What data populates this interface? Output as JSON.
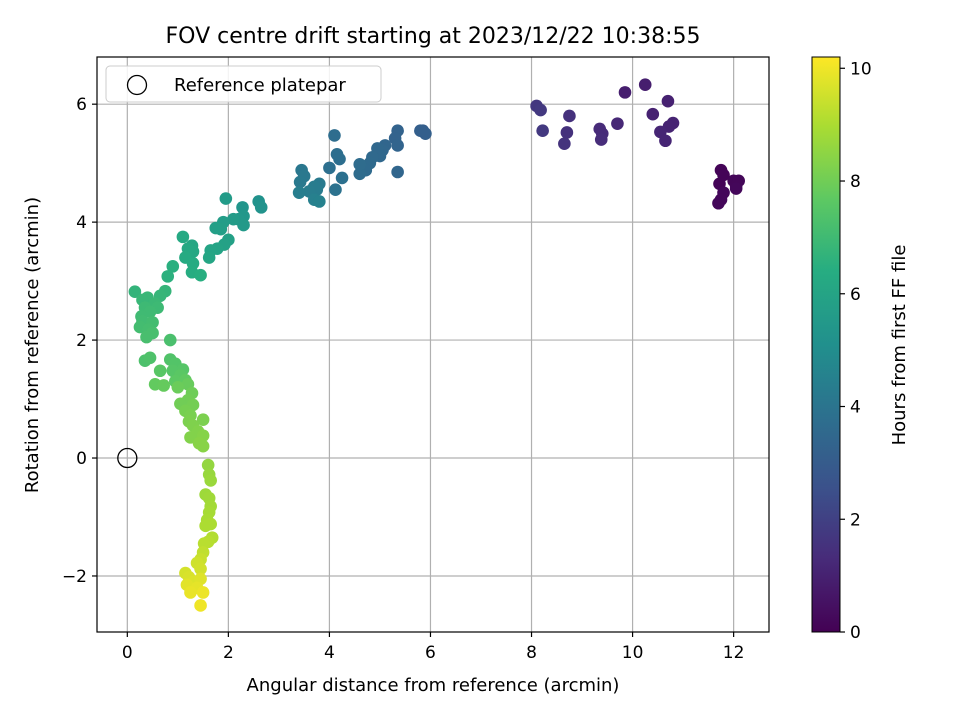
{
  "chart_data": {
    "type": "scatter",
    "title": "FOV centre drift starting at 2023/12/22 10:38:55",
    "xlabel": "Angular distance from reference (arcmin)",
    "ylabel": "Rotation from reference (arcmin)",
    "xlim": [
      -0.6,
      12.7
    ],
    "ylim": [
      -2.95,
      6.8
    ],
    "xticks": [
      0,
      2,
      4,
      6,
      8,
      10,
      12
    ],
    "yticks": [
      -2,
      0,
      2,
      4,
      6
    ],
    "xtick_labels": [
      "0",
      "2",
      "4",
      "6",
      "8",
      "10",
      "12"
    ],
    "ytick_labels": [
      "−2",
      "0",
      "2",
      "4",
      "6"
    ],
    "grid": true,
    "legend": {
      "placement": "upper-left",
      "entries": [
        {
          "label": "Reference platepar",
          "marker": "open-circle"
        }
      ]
    },
    "reference_point": {
      "x": 0,
      "y": 0
    },
    "colorbar": {
      "label": "Hours from first FF file",
      "range": [
        0,
        10.2
      ],
      "ticks": [
        0,
        2,
        4,
        6,
        8,
        10
      ],
      "tick_labels": [
        "0",
        "2",
        "4",
        "6",
        "8",
        "10"
      ],
      "colormap": "viridis"
    },
    "points": [
      {
        "x": 11.75,
        "y": 4.88,
        "t": 0.1
      },
      {
        "x": 11.8,
        "y": 4.8,
        "t": 0.1
      },
      {
        "x": 11.72,
        "y": 4.65,
        "t": 0.1
      },
      {
        "x": 12.0,
        "y": 4.7,
        "t": 0.15
      },
      {
        "x": 12.05,
        "y": 4.62,
        "t": 0.15
      },
      {
        "x": 12.1,
        "y": 4.7,
        "t": 0.15
      },
      {
        "x": 11.8,
        "y": 4.5,
        "t": 0.2
      },
      {
        "x": 11.75,
        "y": 4.38,
        "t": 0.2
      },
      {
        "x": 11.7,
        "y": 4.32,
        "t": 0.2
      },
      {
        "x": 12.05,
        "y": 4.57,
        "t": 0.2
      },
      {
        "x": 10.25,
        "y": 6.33,
        "t": 0.9
      },
      {
        "x": 9.85,
        "y": 6.2,
        "t": 0.9
      },
      {
        "x": 10.7,
        "y": 6.05,
        "t": 1.0
      },
      {
        "x": 10.4,
        "y": 5.83,
        "t": 1.0
      },
      {
        "x": 10.8,
        "y": 5.68,
        "t": 1.05
      },
      {
        "x": 10.72,
        "y": 5.62,
        "t": 1.05
      },
      {
        "x": 10.55,
        "y": 5.53,
        "t": 1.1
      },
      {
        "x": 10.65,
        "y": 5.38,
        "t": 1.1
      },
      {
        "x": 9.7,
        "y": 5.67,
        "t": 1.2
      },
      {
        "x": 9.35,
        "y": 5.58,
        "t": 1.3
      },
      {
        "x": 9.4,
        "y": 5.5,
        "t": 1.3
      },
      {
        "x": 9.38,
        "y": 5.4,
        "t": 1.35
      },
      {
        "x": 8.75,
        "y": 5.8,
        "t": 1.5
      },
      {
        "x": 8.7,
        "y": 5.52,
        "t": 1.5
      },
      {
        "x": 8.65,
        "y": 5.33,
        "t": 1.55
      },
      {
        "x": 8.1,
        "y": 5.97,
        "t": 1.7
      },
      {
        "x": 8.18,
        "y": 5.9,
        "t": 1.75
      },
      {
        "x": 8.22,
        "y": 5.55,
        "t": 1.75
      },
      {
        "x": 5.85,
        "y": 5.55,
        "t": 3.1
      },
      {
        "x": 5.9,
        "y": 5.5,
        "t": 3.15
      },
      {
        "x": 5.8,
        "y": 5.55,
        "t": 3.15
      },
      {
        "x": 5.35,
        "y": 5.55,
        "t": 3.3
      },
      {
        "x": 5.3,
        "y": 5.42,
        "t": 3.3
      },
      {
        "x": 5.35,
        "y": 5.3,
        "t": 3.35
      },
      {
        "x": 5.35,
        "y": 4.85,
        "t": 3.4
      },
      {
        "x": 5.1,
        "y": 5.3,
        "t": 3.4
      },
      {
        "x": 5.05,
        "y": 5.22,
        "t": 3.45
      },
      {
        "x": 5.0,
        "y": 5.12,
        "t": 3.5
      },
      {
        "x": 4.95,
        "y": 5.25,
        "t": 3.5
      },
      {
        "x": 4.85,
        "y": 5.1,
        "t": 3.55
      },
      {
        "x": 4.8,
        "y": 5.0,
        "t": 3.6
      },
      {
        "x": 4.72,
        "y": 4.88,
        "t": 3.6
      },
      {
        "x": 4.6,
        "y": 4.82,
        "t": 3.65
      },
      {
        "x": 4.6,
        "y": 4.98,
        "t": 3.65
      },
      {
        "x": 4.1,
        "y": 5.47,
        "t": 3.7
      },
      {
        "x": 4.15,
        "y": 5.15,
        "t": 3.75
      },
      {
        "x": 4.2,
        "y": 5.07,
        "t": 3.75
      },
      {
        "x": 4.0,
        "y": 4.92,
        "t": 3.8
      },
      {
        "x": 4.25,
        "y": 4.75,
        "t": 3.85
      },
      {
        "x": 4.12,
        "y": 4.55,
        "t": 3.9
      },
      {
        "x": 3.45,
        "y": 4.88,
        "t": 4.1
      },
      {
        "x": 3.5,
        "y": 4.78,
        "t": 4.15
      },
      {
        "x": 3.42,
        "y": 4.68,
        "t": 4.2
      },
      {
        "x": 3.8,
        "y": 4.65,
        "t": 4.25
      },
      {
        "x": 3.75,
        "y": 4.55,
        "t": 4.3
      },
      {
        "x": 3.7,
        "y": 4.6,
        "t": 4.3
      },
      {
        "x": 3.6,
        "y": 4.52,
        "t": 4.35
      },
      {
        "x": 3.4,
        "y": 4.5,
        "t": 4.4
      },
      {
        "x": 3.7,
        "y": 4.38,
        "t": 4.45
      },
      {
        "x": 3.8,
        "y": 4.35,
        "t": 4.5
      },
      {
        "x": 2.6,
        "y": 4.35,
        "t": 5.2
      },
      {
        "x": 2.65,
        "y": 4.25,
        "t": 5.25
      },
      {
        "x": 2.28,
        "y": 4.25,
        "t": 5.35
      },
      {
        "x": 2.3,
        "y": 4.1,
        "t": 5.4
      },
      {
        "x": 2.2,
        "y": 4.05,
        "t": 5.45
      },
      {
        "x": 2.3,
        "y": 3.95,
        "t": 5.5
      },
      {
        "x": 1.95,
        "y": 4.4,
        "t": 5.6
      },
      {
        "x": 2.1,
        "y": 4.05,
        "t": 5.6
      },
      {
        "x": 1.9,
        "y": 4.0,
        "t": 5.7
      },
      {
        "x": 1.85,
        "y": 3.88,
        "t": 5.75
      },
      {
        "x": 1.75,
        "y": 3.9,
        "t": 5.8
      },
      {
        "x": 2.0,
        "y": 3.7,
        "t": 5.85
      },
      {
        "x": 1.92,
        "y": 3.62,
        "t": 5.9
      },
      {
        "x": 1.78,
        "y": 3.55,
        "t": 5.95
      },
      {
        "x": 1.65,
        "y": 3.52,
        "t": 6.0
      },
      {
        "x": 1.62,
        "y": 3.4,
        "t": 6.05
      },
      {
        "x": 1.28,
        "y": 3.6,
        "t": 6.1
      },
      {
        "x": 1.3,
        "y": 3.5,
        "t": 6.15
      },
      {
        "x": 1.2,
        "y": 3.55,
        "t": 6.2
      },
      {
        "x": 1.1,
        "y": 3.75,
        "t": 6.25
      },
      {
        "x": 1.15,
        "y": 3.4,
        "t": 6.3
      },
      {
        "x": 1.3,
        "y": 3.3,
        "t": 6.35
      },
      {
        "x": 1.28,
        "y": 3.15,
        "t": 6.4
      },
      {
        "x": 1.45,
        "y": 3.1,
        "t": 6.45
      },
      {
        "x": 0.9,
        "y": 3.25,
        "t": 6.5
      },
      {
        "x": 0.8,
        "y": 3.08,
        "t": 6.55
      },
      {
        "x": 0.15,
        "y": 2.82,
        "t": 6.7
      },
      {
        "x": 0.75,
        "y": 2.83,
        "t": 6.75
      },
      {
        "x": 0.65,
        "y": 2.75,
        "t": 6.8
      },
      {
        "x": 0.4,
        "y": 2.72,
        "t": 6.85
      },
      {
        "x": 0.3,
        "y": 2.68,
        "t": 6.85
      },
      {
        "x": 0.55,
        "y": 2.62,
        "t": 6.9
      },
      {
        "x": 0.6,
        "y": 2.55,
        "t": 6.95
      },
      {
        "x": 0.35,
        "y": 2.55,
        "t": 6.95
      },
      {
        "x": 0.45,
        "y": 2.48,
        "t": 7.0
      },
      {
        "x": 0.28,
        "y": 2.4,
        "t": 7.0
      },
      {
        "x": 0.3,
        "y": 2.32,
        "t": 7.05
      },
      {
        "x": 0.5,
        "y": 2.3,
        "t": 7.1
      },
      {
        "x": 0.25,
        "y": 2.22,
        "t": 7.1
      },
      {
        "x": 0.42,
        "y": 2.18,
        "t": 7.15
      },
      {
        "x": 0.5,
        "y": 2.12,
        "t": 7.2
      },
      {
        "x": 0.38,
        "y": 2.05,
        "t": 7.2
      },
      {
        "x": 0.85,
        "y": 2.0,
        "t": 7.25
      },
      {
        "x": 0.35,
        "y": 1.65,
        "t": 7.3
      },
      {
        "x": 0.45,
        "y": 1.7,
        "t": 7.35
      },
      {
        "x": 0.85,
        "y": 1.67,
        "t": 7.4
      },
      {
        "x": 0.95,
        "y": 1.6,
        "t": 7.45
      },
      {
        "x": 0.9,
        "y": 1.48,
        "t": 7.5
      },
      {
        "x": 1.1,
        "y": 1.5,
        "t": 7.5
      },
      {
        "x": 0.65,
        "y": 1.48,
        "t": 7.55
      },
      {
        "x": 1.05,
        "y": 1.4,
        "t": 7.6
      },
      {
        "x": 0.95,
        "y": 1.3,
        "t": 7.65
      },
      {
        "x": 1.15,
        "y": 1.32,
        "t": 7.7
      },
      {
        "x": 0.55,
        "y": 1.25,
        "t": 7.75
      },
      {
        "x": 0.72,
        "y": 1.23,
        "t": 7.8
      },
      {
        "x": 1.2,
        "y": 1.25,
        "t": 7.85
      },
      {
        "x": 1.0,
        "y": 1.2,
        "t": 7.9
      },
      {
        "x": 1.28,
        "y": 1.1,
        "t": 7.95
      },
      {
        "x": 1.2,
        "y": 0.98,
        "t": 8.0
      },
      {
        "x": 1.05,
        "y": 0.92,
        "t": 8.0
      },
      {
        "x": 1.3,
        "y": 0.9,
        "t": 8.05
      },
      {
        "x": 1.15,
        "y": 0.8,
        "t": 8.1
      },
      {
        "x": 1.25,
        "y": 0.72,
        "t": 8.15
      },
      {
        "x": 1.5,
        "y": 0.65,
        "t": 8.2
      },
      {
        "x": 1.22,
        "y": 0.62,
        "t": 8.2
      },
      {
        "x": 1.3,
        "y": 0.55,
        "t": 8.25
      },
      {
        "x": 1.4,
        "y": 0.45,
        "t": 8.3
      },
      {
        "x": 1.25,
        "y": 0.35,
        "t": 8.3
      },
      {
        "x": 1.5,
        "y": 0.38,
        "t": 8.35
      },
      {
        "x": 1.42,
        "y": 0.25,
        "t": 8.4
      },
      {
        "x": 1.5,
        "y": 0.2,
        "t": 8.4
      },
      {
        "x": 1.6,
        "y": -0.12,
        "t": 8.6
      },
      {
        "x": 1.62,
        "y": -0.28,
        "t": 8.65
      },
      {
        "x": 1.65,
        "y": -0.38,
        "t": 8.7
      },
      {
        "x": 1.55,
        "y": -0.62,
        "t": 8.75
      },
      {
        "x": 1.62,
        "y": -0.68,
        "t": 8.8
      },
      {
        "x": 1.65,
        "y": -0.82,
        "t": 8.85
      },
      {
        "x": 1.62,
        "y": -0.92,
        "t": 8.9
      },
      {
        "x": 1.58,
        "y": -1.05,
        "t": 8.95
      },
      {
        "x": 1.65,
        "y": -1.12,
        "t": 9.0
      },
      {
        "x": 1.55,
        "y": -1.15,
        "t": 9.0
      },
      {
        "x": 1.68,
        "y": -1.35,
        "t": 9.1
      },
      {
        "x": 1.6,
        "y": -1.42,
        "t": 9.15
      },
      {
        "x": 1.52,
        "y": -1.45,
        "t": 9.2
      },
      {
        "x": 1.5,
        "y": -1.6,
        "t": 9.3
      },
      {
        "x": 1.45,
        "y": -1.72,
        "t": 9.4
      },
      {
        "x": 1.38,
        "y": -1.78,
        "t": 9.5
      },
      {
        "x": 1.45,
        "y": -1.88,
        "t": 9.55
      },
      {
        "x": 1.15,
        "y": -1.95,
        "t": 9.6
      },
      {
        "x": 1.22,
        "y": -2.02,
        "t": 9.65
      },
      {
        "x": 1.3,
        "y": -2.1,
        "t": 9.7
      },
      {
        "x": 1.45,
        "y": -2.05,
        "t": 9.75
      },
      {
        "x": 1.18,
        "y": -2.15,
        "t": 9.8
      },
      {
        "x": 1.38,
        "y": -2.2,
        "t": 9.85
      },
      {
        "x": 1.25,
        "y": -2.28,
        "t": 9.9
      },
      {
        "x": 1.5,
        "y": -2.28,
        "t": 9.95
      },
      {
        "x": 1.45,
        "y": -2.5,
        "t": 10.0
      }
    ]
  }
}
